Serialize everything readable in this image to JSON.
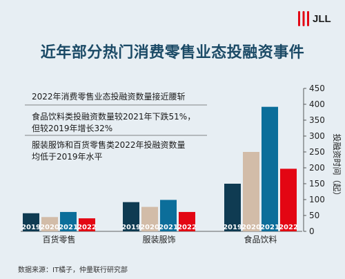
{
  "brand": {
    "logo_text": "JLL",
    "logo_color": "#e30613"
  },
  "title": "近年部分热门消费零售业态投融资事件",
  "footer": "数据来源：IT橘子，仲量联行研究部",
  "chart_data": {
    "type": "bar",
    "categories": [
      "百货零售",
      "服装服饰",
      "食品饮料"
    ],
    "years": [
      "2019",
      "2020",
      "2021",
      "2022"
    ],
    "series": [
      {
        "name": "2019",
        "values": [
          57,
          92,
          150
        ],
        "color": "#0f3b52"
      },
      {
        "name": "2020",
        "values": [
          45,
          77,
          250
        ],
        "color": "#d2bca8"
      },
      {
        "name": "2021",
        "values": [
          61,
          99,
          392
        ],
        "color": "#0c6e9a"
      },
      {
        "name": "2022",
        "values": [
          41,
          61,
          197
        ],
        "color": "#e30613"
      }
    ],
    "ylim": [
      0,
      450
    ],
    "yticks": [
      0,
      50,
      100,
      150,
      200,
      250,
      300,
      350,
      400,
      450
    ],
    "ylabel": "投融资时间（起）",
    "grid": false,
    "annotations": [
      {
        "lines": [
          "2022年消费零售业态投融资数量接近腰斩"
        ]
      },
      {
        "lines": [
          "食品饮料类投融资数量较2021年下跌51%，",
          "但较2019年增长32%"
        ]
      },
      {
        "lines": [
          "服装服饰和百货零售类2022年投融资数量",
          "均低于2019年水平"
        ]
      }
    ]
  }
}
